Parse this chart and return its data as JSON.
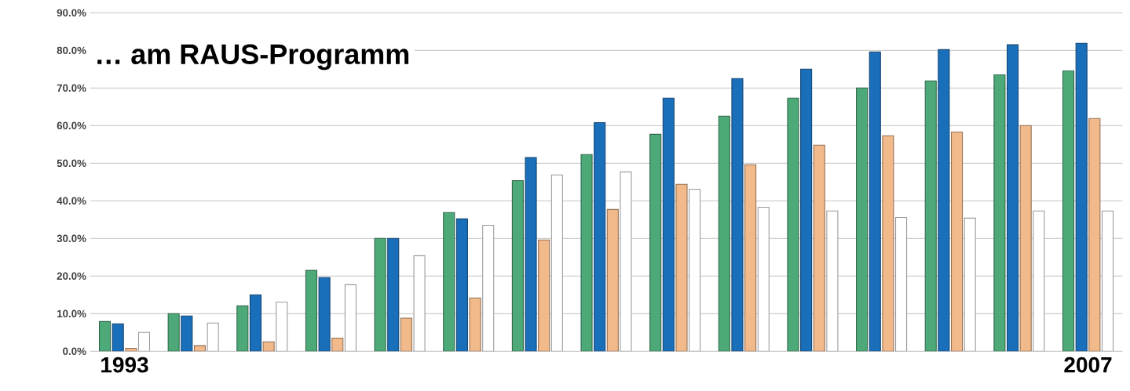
{
  "chart_data": {
    "type": "bar",
    "title": "… am **RAUS**-Programm",
    "categories": [
      "1993",
      null,
      null,
      null,
      null,
      null,
      null,
      null,
      null,
      null,
      null,
      null,
      null,
      null,
      "2007"
    ],
    "series": [
      {
        "color": "#4daa78",
        "values": [
          7.9,
          10.0,
          12.1,
          21.5,
          30.0,
          36.9,
          45.4,
          52.3,
          57.7,
          62.5,
          67.3,
          70.0,
          71.9,
          73.5,
          74.6
        ]
      },
      {
        "color": "#1a6fba",
        "values": [
          7.3,
          9.4,
          15.0,
          19.6,
          30.0,
          35.2,
          51.5,
          60.8,
          67.3,
          72.5,
          75.0,
          79.6,
          80.2,
          81.5,
          81.9
        ]
      },
      {
        "color": "#f2b98a",
        "values": [
          0.8,
          1.5,
          2.5,
          3.5,
          8.8,
          14.2,
          29.6,
          37.7,
          44.4,
          49.6,
          54.8,
          57.3,
          58.3,
          60.0,
          61.9
        ]
      },
      {
        "color": "#ffffff",
        "values": [
          5.0,
          7.5,
          13.1,
          17.7,
          25.4,
          33.5,
          46.9,
          47.7,
          43.1,
          38.3,
          37.3,
          35.6,
          35.4,
          37.3,
          37.3
        ]
      }
    ],
    "ylim": [
      0,
      90
    ],
    "yticks": [
      {
        "value": 0,
        "label": "0.0%"
      },
      {
        "value": 10,
        "label": "10.0%"
      },
      {
        "value": 20,
        "label": "20.0%"
      },
      {
        "value": 30,
        "label": "30.0%"
      },
      {
        "value": 40,
        "label": "40.0%"
      },
      {
        "value": 50,
        "label": "50.0%"
      },
      {
        "value": 60,
        "label": "60.0%"
      },
      {
        "value": 70,
        "label": "70.0%"
      },
      {
        "value": 80,
        "label": "80.0%"
      },
      {
        "value": 90,
        "label": "90.0%"
      }
    ],
    "grid": "y"
  }
}
